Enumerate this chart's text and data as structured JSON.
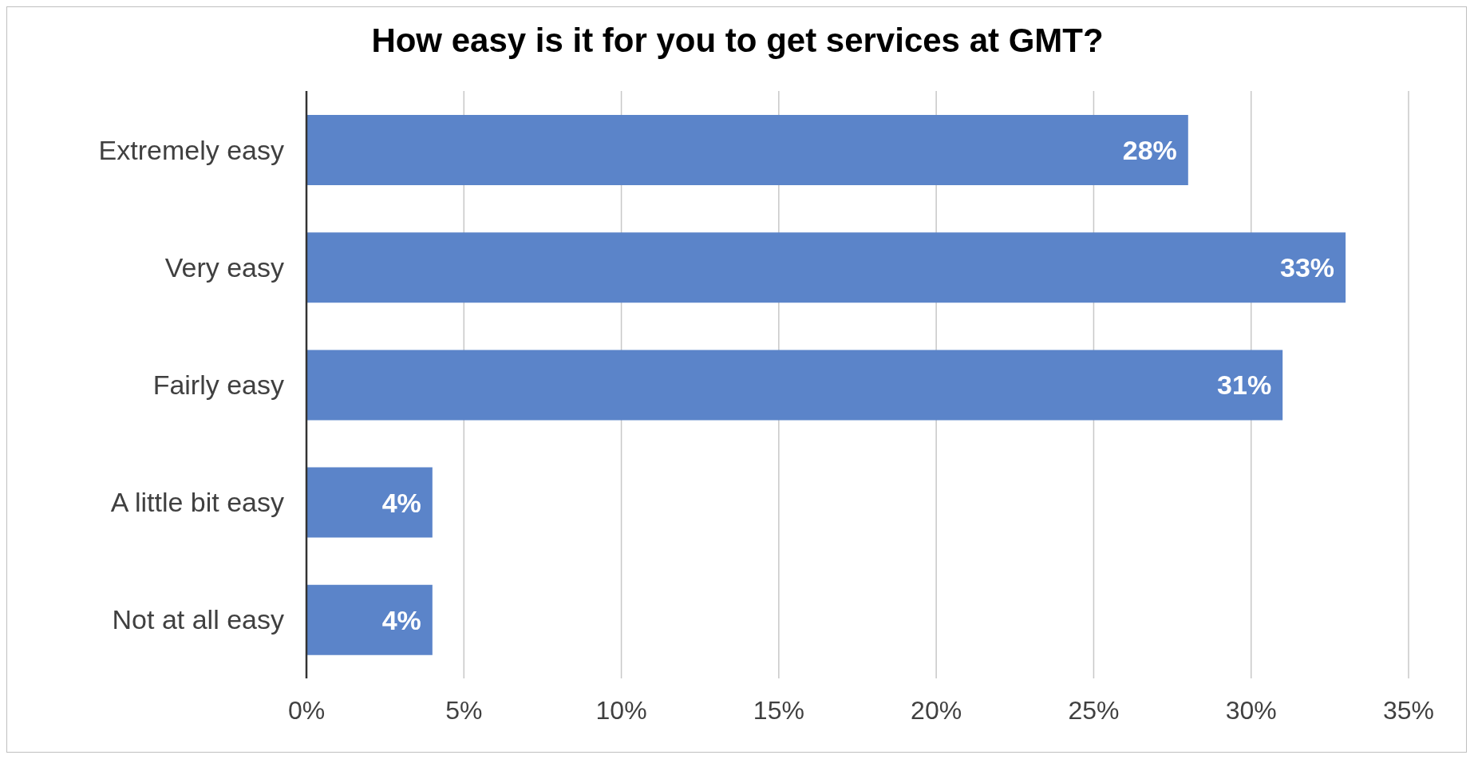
{
  "chart_data": {
    "type": "bar",
    "orientation": "horizontal",
    "title": "How easy is it for you to get services at GMT?",
    "categories": [
      "Extremely easy",
      "Very easy",
      "Fairly easy",
      "A little bit easy",
      "Not at all easy"
    ],
    "values": [
      28,
      33,
      31,
      4,
      4
    ],
    "value_labels": [
      "28%",
      "33%",
      "31%",
      "4%",
      "4%"
    ],
    "color": "#5b84c9",
    "xlim": [
      0,
      35
    ],
    "xticks": [
      {
        "value": 0,
        "label": "0%"
      },
      {
        "value": 5,
        "label": "5%"
      },
      {
        "value": 10,
        "label": "10%"
      },
      {
        "value": 15,
        "label": "15%"
      },
      {
        "value": 20,
        "label": "20%"
      },
      {
        "value": 25,
        "label": "25%"
      },
      {
        "value": 30,
        "label": "30%"
      },
      {
        "value": 35,
        "label": "35%"
      }
    ],
    "grid": "x",
    "legend": false
  }
}
